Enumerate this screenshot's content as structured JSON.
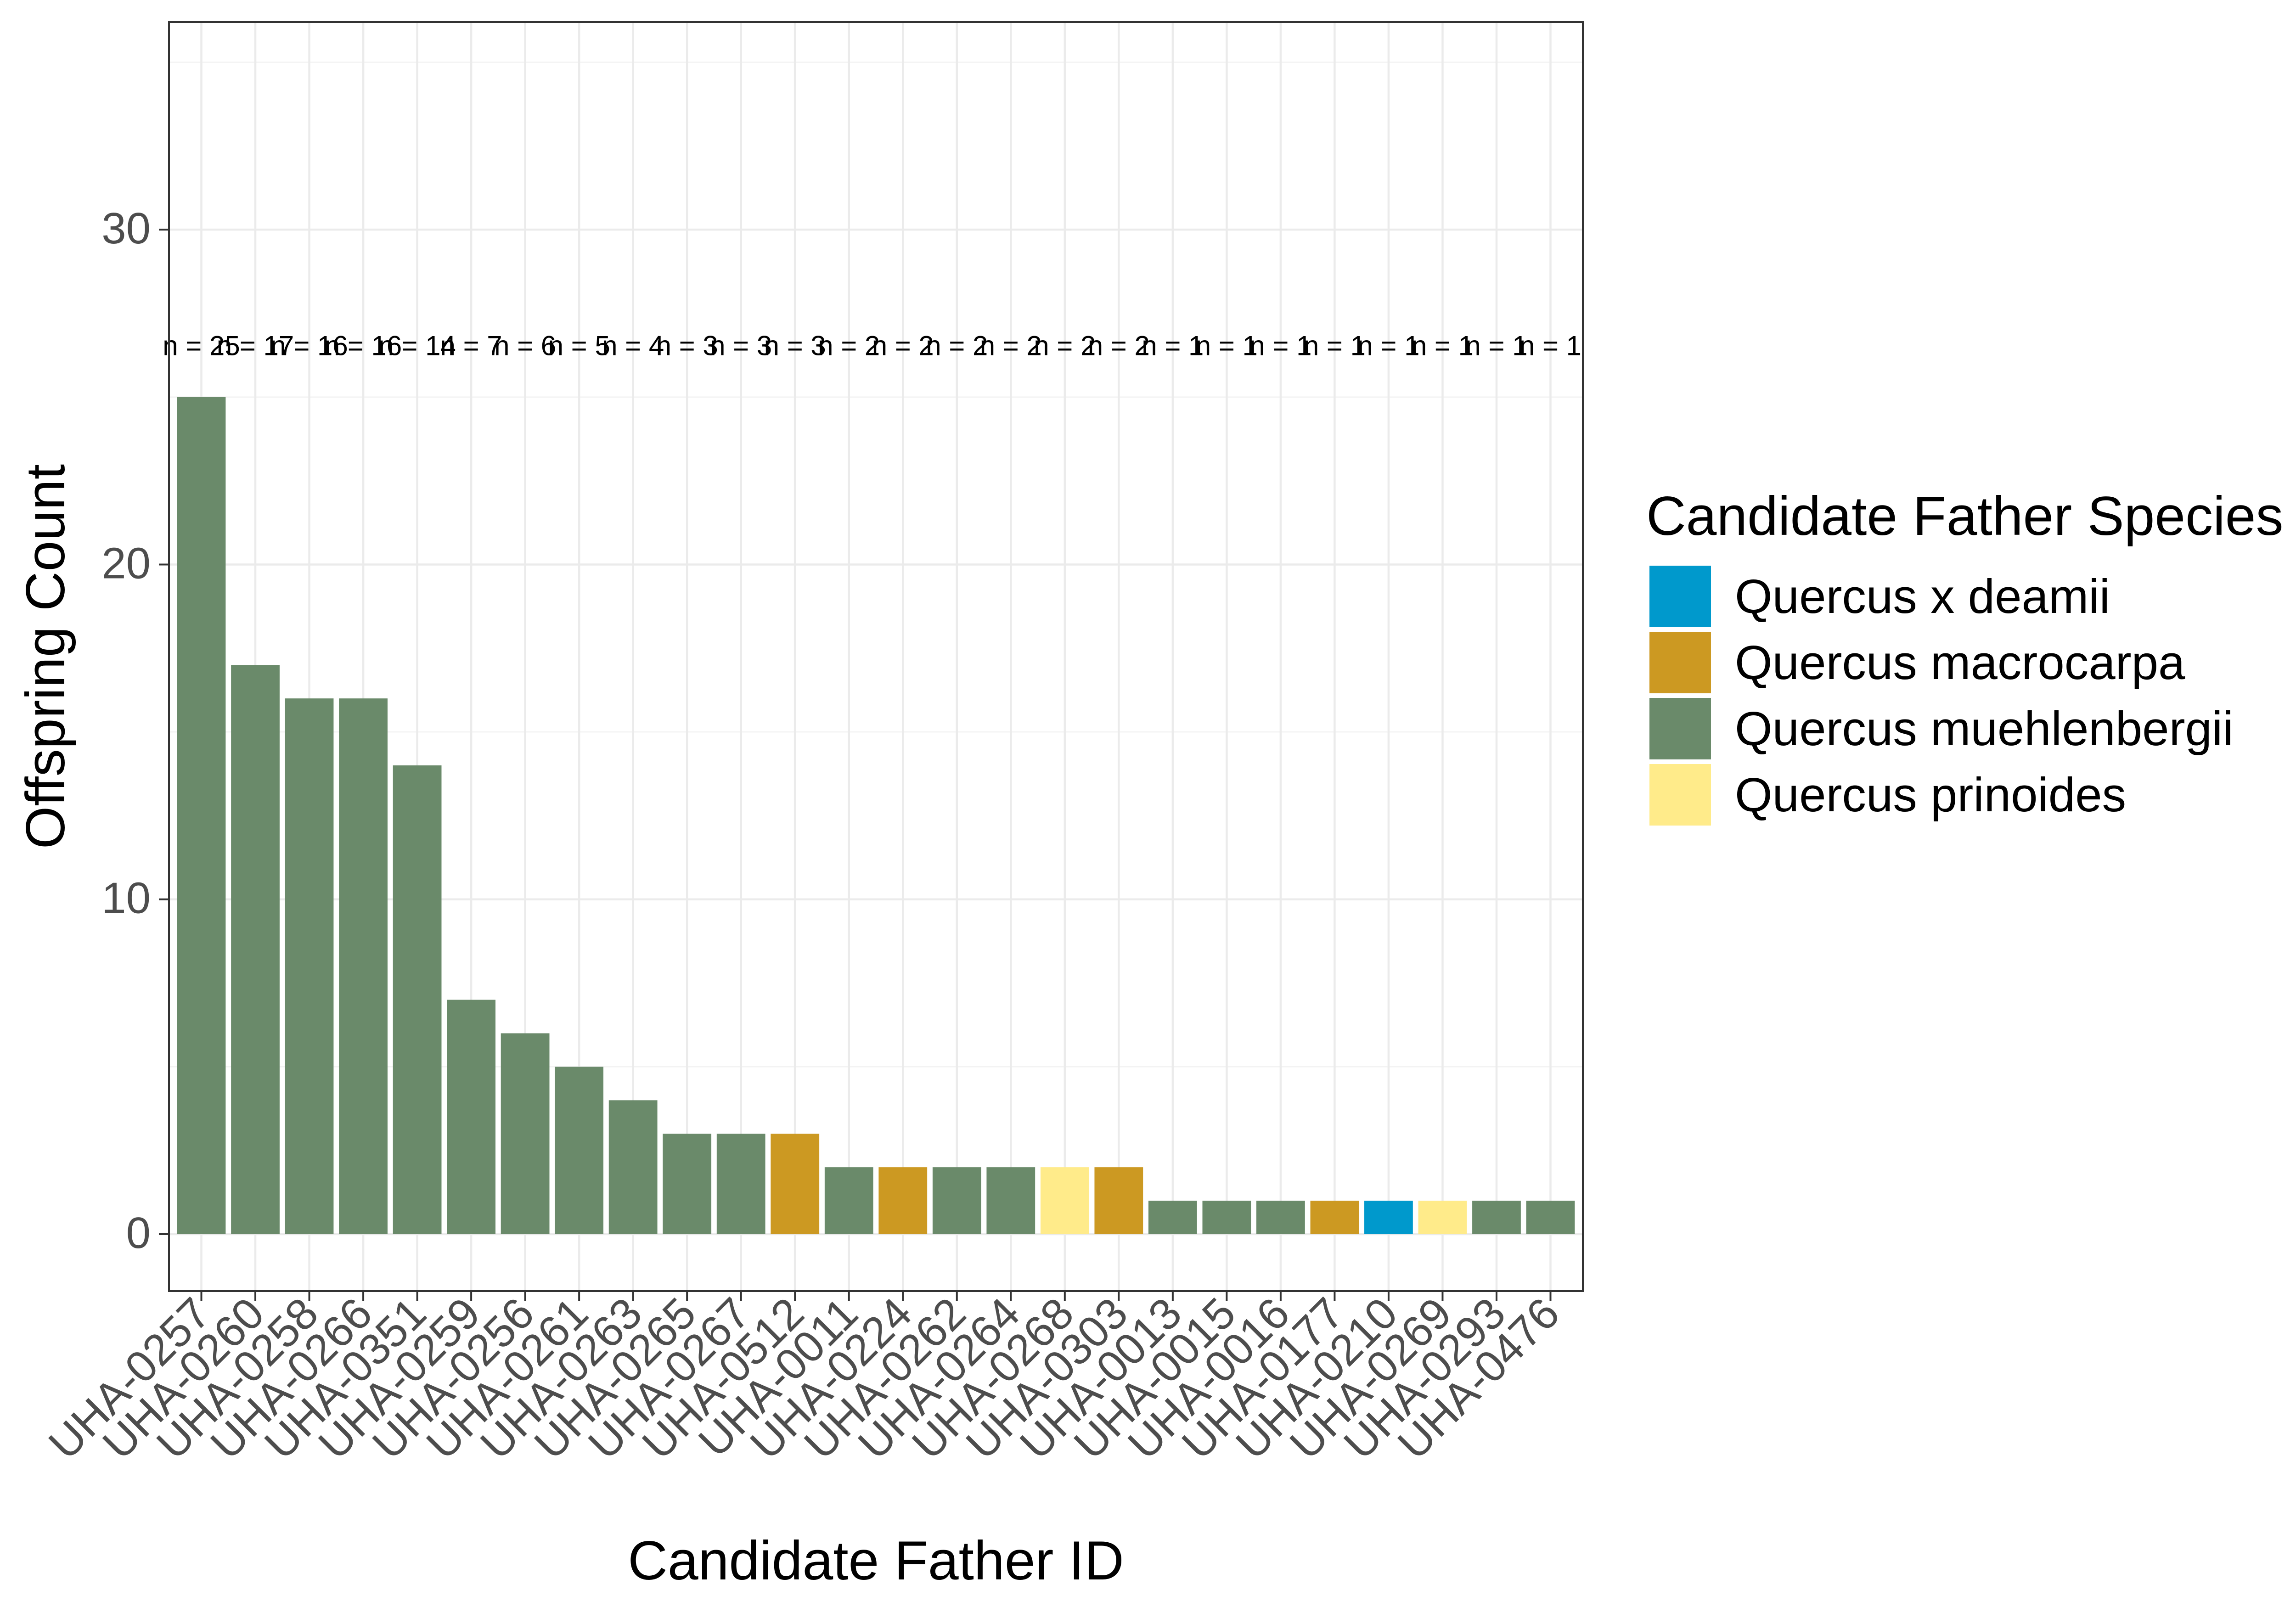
{
  "chart_data": {
    "type": "bar",
    "title": "",
    "xlabel": "Candidate Father ID",
    "ylabel": "Offspring Count",
    "ylim": [
      -1.7,
      36.2
    ],
    "yticks": [
      0,
      10,
      20,
      30
    ],
    "grid": true,
    "legend": {
      "title": "Candidate Father Species",
      "placement": "right",
      "entries": [
        {
          "label": "Quercus x deamii",
          "color": "#0099cc"
        },
        {
          "label": "Quercus macrocarpa",
          "color": "#cc9922"
        },
        {
          "label": "Quercus muehlenbergii",
          "color": "#6a8a6a"
        },
        {
          "label": "Quercus prinoides",
          "color": "#ffeb8a"
        }
      ]
    },
    "bar_label_prefix": "n = ",
    "bar_label_y": 26.5,
    "categories": [
      "UHA-0257",
      "UHA-0260",
      "UHA-0258",
      "UHA-0266",
      "UHA-0351",
      "UHA-0259",
      "UHA-0256",
      "UHA-0261",
      "UHA-0263",
      "UHA-0265",
      "UHA-0267",
      "UHA-0512",
      "UHA-0011",
      "UHA-0224",
      "UHA-0262",
      "UHA-0264",
      "UHA-0268",
      "UHA-0303",
      "UHA-0013",
      "UHA-0015",
      "UHA-0016",
      "UHA-0177",
      "UHA-0210",
      "UHA-0269",
      "UHA-0293",
      "UHA-0476"
    ],
    "values": [
      25,
      17,
      16,
      16,
      14,
      7,
      6,
      5,
      4,
      3,
      3,
      3,
      2,
      2,
      2,
      2,
      2,
      2,
      1,
      1,
      1,
      1,
      1,
      1,
      1,
      1
    ],
    "species": [
      "Quercus muehlenbergii",
      "Quercus muehlenbergii",
      "Quercus muehlenbergii",
      "Quercus muehlenbergii",
      "Quercus muehlenbergii",
      "Quercus muehlenbergii",
      "Quercus muehlenbergii",
      "Quercus muehlenbergii",
      "Quercus muehlenbergii",
      "Quercus muehlenbergii",
      "Quercus muehlenbergii",
      "Quercus macrocarpa",
      "Quercus muehlenbergii",
      "Quercus macrocarpa",
      "Quercus muehlenbergii",
      "Quercus muehlenbergii",
      "Quercus prinoides",
      "Quercus macrocarpa",
      "Quercus muehlenbergii",
      "Quercus muehlenbergii",
      "Quercus muehlenbergii",
      "Quercus macrocarpa",
      "Quercus x deamii",
      "Quercus prinoides",
      "Quercus muehlenbergii",
      "Quercus muehlenbergii"
    ]
  }
}
